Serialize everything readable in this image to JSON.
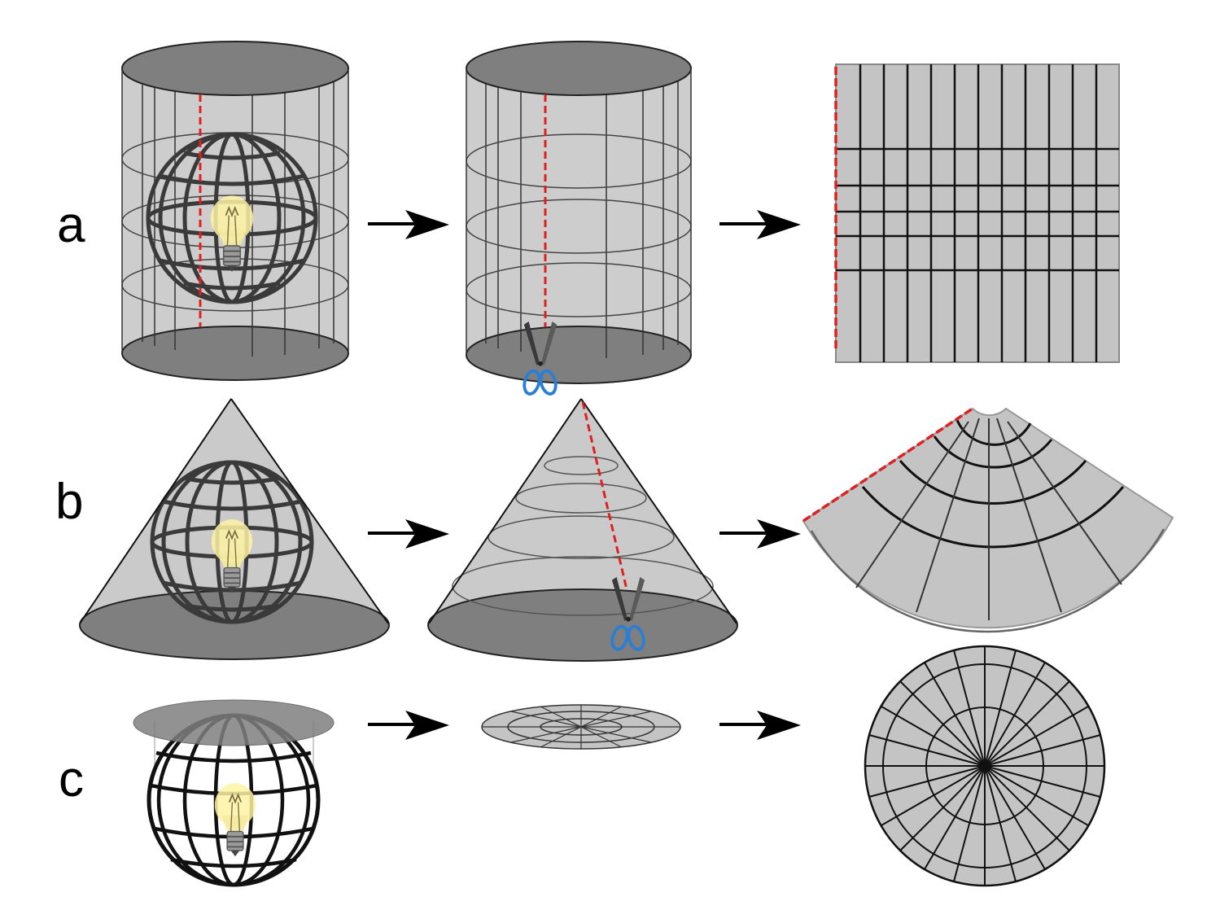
{
  "rows": [
    {
      "id": "a",
      "label": "a",
      "surface": "cylinder"
    },
    {
      "id": "b",
      "label": "b",
      "surface": "cone"
    },
    {
      "id": "c",
      "label": "c",
      "surface": "plane"
    }
  ],
  "colors": {
    "surface_fill": "#c4c4c4",
    "surface_cap": "#7f7f7f",
    "grid_line": "#1a1a1a",
    "cut_line": "#e02020",
    "bulb_glow": "#fff7b0",
    "scissors_handle": "#2a7fd4"
  },
  "icons": [
    "light-bulb-icon",
    "scissors-icon",
    "arrow-right-icon"
  ]
}
